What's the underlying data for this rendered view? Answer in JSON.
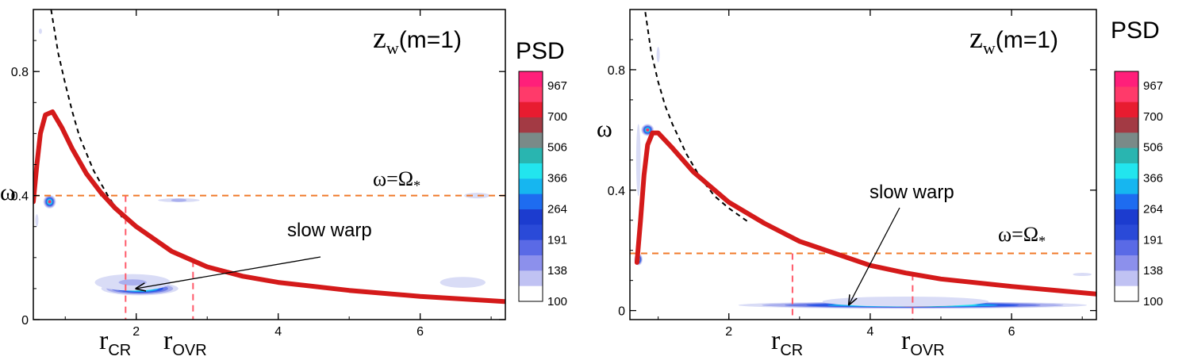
{
  "chart_data": [
    {
      "type": "heatmap",
      "title": "z_w(m=1)",
      "title_main": "z",
      "title_sub": "w",
      "title_suffix": "(m=1)",
      "ylabel": "ω",
      "xlim": [
        0.55,
        7.2
      ],
      "ylim": [
        0,
        1.0
      ],
      "xticks": [
        2,
        4,
        6
      ],
      "xtick_labels": [
        "2",
        "4",
        "6"
      ],
      "yticks": [
        0,
        0.4,
        0.8
      ],
      "ytick_labels": [
        "0",
        "0.4",
        "0.8"
      ],
      "pattern_speed": 0.4,
      "pattern_label": "ω=Ω",
      "pattern_label_sub": "*",
      "annotation": "slow warp",
      "annotation_target": [
        2.0,
        0.1
      ],
      "r_cr": 1.85,
      "r_ovr": 2.8,
      "r_cr_label": "r",
      "r_cr_sub": "CR",
      "r_ovr_label": "r",
      "r_ovr_sub": "OVR",
      "precession_curve": [
        [
          0.55,
          0.38
        ],
        [
          0.6,
          0.5
        ],
        [
          0.65,
          0.6
        ],
        [
          0.72,
          0.66
        ],
        [
          0.82,
          0.67
        ],
        [
          0.95,
          0.62
        ],
        [
          1.1,
          0.55
        ],
        [
          1.3,
          0.47
        ],
        [
          1.5,
          0.41
        ],
        [
          1.7,
          0.36
        ],
        [
          2.0,
          0.3
        ],
        [
          2.5,
          0.22
        ],
        [
          3.0,
          0.17
        ],
        [
          3.5,
          0.14
        ],
        [
          4.0,
          0.12
        ],
        [
          5.0,
          0.094
        ],
        [
          6.0,
          0.075
        ],
        [
          7.2,
          0.058
        ]
      ],
      "kepler_curve": [
        [
          0.8,
          1.0
        ],
        [
          0.9,
          0.86
        ],
        [
          1.0,
          0.76
        ],
        [
          1.1,
          0.67
        ],
        [
          1.2,
          0.59
        ],
        [
          1.4,
          0.48
        ],
        [
          1.6,
          0.4
        ],
        [
          1.8,
          0.33
        ]
      ],
      "psd_blobs": [
        {
          "x": 2.05,
          "y": 0.1,
          "sx": 0.55,
          "sy": 0.022,
          "v": 1000
        },
        {
          "x": 1.95,
          "y": 0.12,
          "sx": 1.0,
          "sy": 0.05,
          "v": 320
        },
        {
          "x": 2.6,
          "y": 0.385,
          "sx": 0.55,
          "sy": 0.012,
          "v": 320
        },
        {
          "x": 0.78,
          "y": 0.38,
          "sx": 0.09,
          "sy": 0.022,
          "v": 1000
        },
        {
          "x": 6.6,
          "y": 0.12,
          "sx": 1.1,
          "sy": 0.06,
          "v": 230
        },
        {
          "x": 6.8,
          "y": 0.4,
          "sx": 0.4,
          "sy": 0.02,
          "v": 280
        },
        {
          "x": 0.6,
          "y": 0.32,
          "sx": 0.06,
          "sy": 0.06,
          "v": 240
        },
        {
          "x": 0.65,
          "y": 0.93,
          "sx": 0.05,
          "sy": 0.03,
          "v": 230
        }
      ]
    },
    {
      "type": "heatmap",
      "title": "z_w(m=1)",
      "title_main": "z",
      "title_sub": "w",
      "title_suffix": "(m=1)",
      "ylabel": "ω",
      "xlim": [
        0.6,
        7.2
      ],
      "ylim": [
        -0.03,
        1.0
      ],
      "xticks": [
        2,
        4,
        6
      ],
      "xtick_labels": [
        "2",
        "4",
        "6"
      ],
      "yticks": [
        0,
        0.4,
        0.8
      ],
      "ytick_labels": [
        "0",
        "0.4",
        "0.8"
      ],
      "pattern_speed": 0.19,
      "pattern_label": "ω=Ω",
      "pattern_label_sub": "*",
      "annotation": "slow warp",
      "annotation_target": [
        3.7,
        0.02
      ],
      "r_cr": 2.9,
      "r_ovr": 4.6,
      "r_cr_label": "r",
      "r_cr_sub": "CR",
      "r_ovr_label": "r",
      "r_ovr_sub": "OVR",
      "precession_curve": [
        [
          0.7,
          0.16
        ],
        [
          0.75,
          0.3
        ],
        [
          0.8,
          0.45
        ],
        [
          0.85,
          0.55
        ],
        [
          0.92,
          0.59
        ],
        [
          1.0,
          0.59
        ],
        [
          1.2,
          0.54
        ],
        [
          1.5,
          0.46
        ],
        [
          2.0,
          0.36
        ],
        [
          2.5,
          0.29
        ],
        [
          3.0,
          0.23
        ],
        [
          3.5,
          0.19
        ],
        [
          4.0,
          0.15
        ],
        [
          4.5,
          0.125
        ],
        [
          5.0,
          0.105
        ],
        [
          6.0,
          0.08
        ],
        [
          7.2,
          0.055
        ]
      ],
      "kepler_curve": [
        [
          0.8,
          1.02
        ],
        [
          0.9,
          0.86
        ],
        [
          1.0,
          0.76
        ],
        [
          1.1,
          0.68
        ],
        [
          1.2,
          0.62
        ],
        [
          1.4,
          0.52
        ],
        [
          1.6,
          0.44
        ],
        [
          1.8,
          0.38
        ],
        [
          2.0,
          0.34
        ],
        [
          2.3,
          0.29
        ]
      ],
      "psd_blobs": [
        {
          "x": 4.6,
          "y": 0.018,
          "sx": 2.5,
          "sy": 0.012,
          "v": 1000
        },
        {
          "x": 4.5,
          "y": 0.03,
          "sx": 3.2,
          "sy": 0.045,
          "v": 250
        },
        {
          "x": 0.85,
          "y": 0.6,
          "sx": 0.09,
          "sy": 0.02,
          "v": 1000
        },
        {
          "x": 0.72,
          "y": 0.17,
          "sx": 0.06,
          "sy": 0.02,
          "v": 1000
        },
        {
          "x": 0.72,
          "y": 0.5,
          "sx": 0.08,
          "sy": 0.3,
          "v": 260
        },
        {
          "x": 1.0,
          "y": 0.85,
          "sx": 0.1,
          "sy": 0.15,
          "v": 200
        },
        {
          "x": 7.0,
          "y": 0.12,
          "sx": 0.4,
          "sy": 0.012,
          "v": 240
        }
      ]
    }
  ],
  "colorbar": {
    "title": "PSD",
    "labels": [
      "967",
      "700",
      "506",
      "366",
      "264",
      "191",
      "138",
      "100"
    ],
    "colors": [
      "#ff1f7a",
      "#ff3a6a",
      "#e81c30",
      "#a33a44",
      "#7a8a88",
      "#29b5b0",
      "#22e5ee",
      "#16b6f0",
      "#1e6cf0",
      "#1c3ccf",
      "#2a4ad8",
      "#5a6ae6",
      "#8c90ec",
      "#c0c2f3",
      "#ffffff"
    ]
  }
}
